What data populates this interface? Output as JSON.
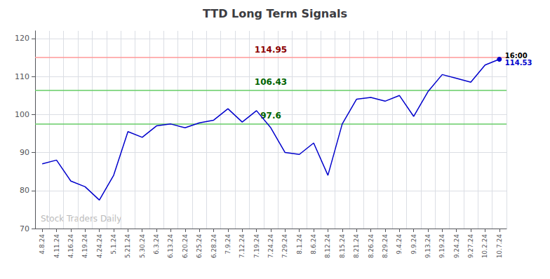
{
  "chart_data": {
    "type": "line",
    "title": "TTD Long Term Signals",
    "categories": [
      "4.8.24",
      "4.11.24",
      "4.16.24",
      "4.19.24",
      "4.24.24",
      "5.1.24",
      "5.21.24",
      "5.30.24",
      "6.3.24",
      "6.13.24",
      "6.20.24",
      "6.25.24",
      "6.28.24",
      "7.9.24",
      "7.12.24",
      "7.19.24",
      "7.24.24",
      "7.29.24",
      "8.1.24",
      "8.6.24",
      "8.12.24",
      "8.15.24",
      "8.21.24",
      "8.26.24",
      "8.29.24",
      "9.4.24",
      "9.9.24",
      "9.13.24",
      "9.19.24",
      "9.24.24",
      "9.27.24",
      "10.2.24",
      "10.7.24"
    ],
    "values": [
      87.0,
      88.0,
      82.5,
      81.0,
      77.5,
      84.0,
      95.5,
      94.0,
      97.0,
      97.5,
      96.5,
      97.8,
      98.5,
      101.5,
      98.0,
      101.0,
      96.5,
      90.0,
      89.5,
      92.5,
      84.0,
      97.5,
      104.0,
      104.5,
      103.5,
      105.0,
      99.5,
      106.0,
      110.5,
      109.5,
      108.5,
      113.0,
      114.53
    ],
    "color": "#0000cc",
    "ylim": [
      70,
      122
    ],
    "yticks": [
      70,
      80,
      90,
      100,
      110,
      120
    ],
    "grid": true,
    "reference_lines": [
      {
        "value": 114.95,
        "label": "114.95",
        "color": "#ff9999",
        "label_color": "darkred"
      },
      {
        "value": 106.43,
        "label": "106.43",
        "color": "#66cc66",
        "label_color": "darkgreen"
      },
      {
        "value": 97.6,
        "label": "97.6",
        "color": "#66cc66",
        "label_color": "darkgreen"
      }
    ],
    "last_time": "16:00",
    "watermark": {
      "text": "Stock Traders Daily",
      "color": "#bbbbbb"
    }
  }
}
